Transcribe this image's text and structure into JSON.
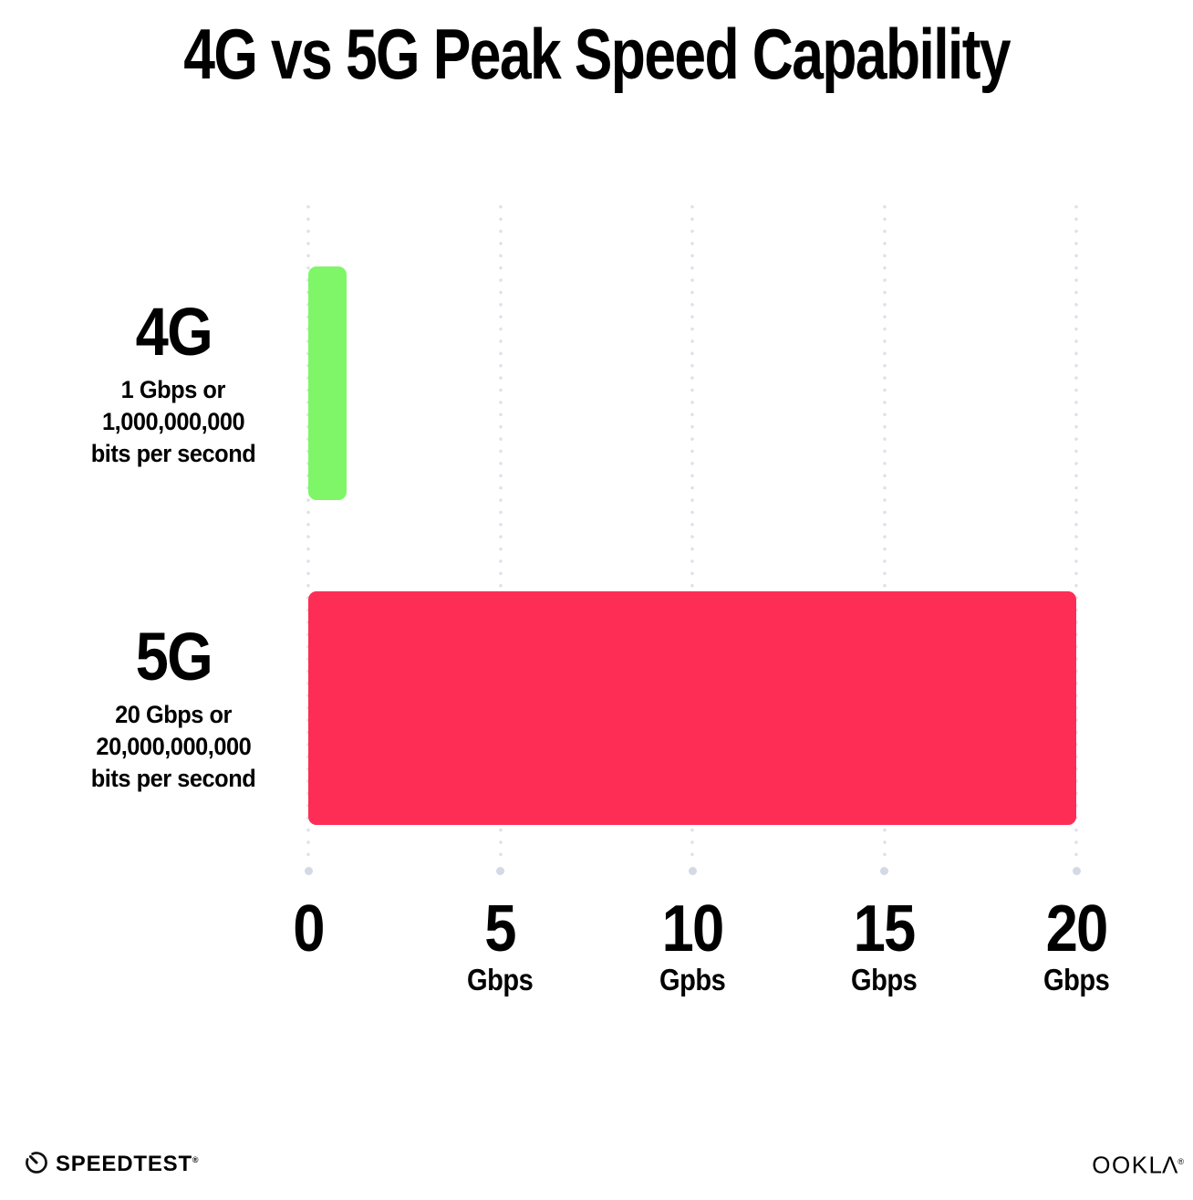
{
  "title": "4G vs 5G Peak Speed Capability",
  "chart_data": {
    "type": "bar",
    "orientation": "horizontal",
    "title": "4G vs 5G Peak Speed Capability",
    "xlim": [
      0,
      20
    ],
    "grid": "vertical dotted gridlines at each tick",
    "legend": "none",
    "bars": [
      {
        "category": "4G",
        "value": 1,
        "color": "#7ff667",
        "label_lines": [
          "1 Gbps or",
          "1,000,000,000",
          "bits per second"
        ]
      },
      {
        "category": "5G",
        "value": 20,
        "color": "#fe2d55",
        "label_lines": [
          "20 Gbps or",
          "20,000,000,000",
          "bits per second"
        ]
      }
    ],
    "x_ticks": [
      {
        "value": 0,
        "label": "0",
        "unit": ""
      },
      {
        "value": 5,
        "label": "5",
        "unit": "Gbps"
      },
      {
        "value": 10,
        "label": "10",
        "unit": "Gpbs"
      },
      {
        "value": 15,
        "label": "15",
        "unit": "Gbps"
      },
      {
        "value": 20,
        "label": "20",
        "unit": "Gbps"
      }
    ]
  },
  "colors": {
    "background": "#ffffff",
    "bar_4g": "#7ff667",
    "bar_5g": "#fe2d55",
    "grid_dot": "#dde1eb",
    "grid_end_dot": "#d5d9e5",
    "text": "#000000"
  },
  "footer": {
    "speedtest_label": "SPEEDTEST",
    "speedtest_mark": "®",
    "ookla_label_oo": "OO",
    "ookla_label_k": "K",
    "ookla_label_la": "LΛ",
    "ookla_mark": "®"
  }
}
